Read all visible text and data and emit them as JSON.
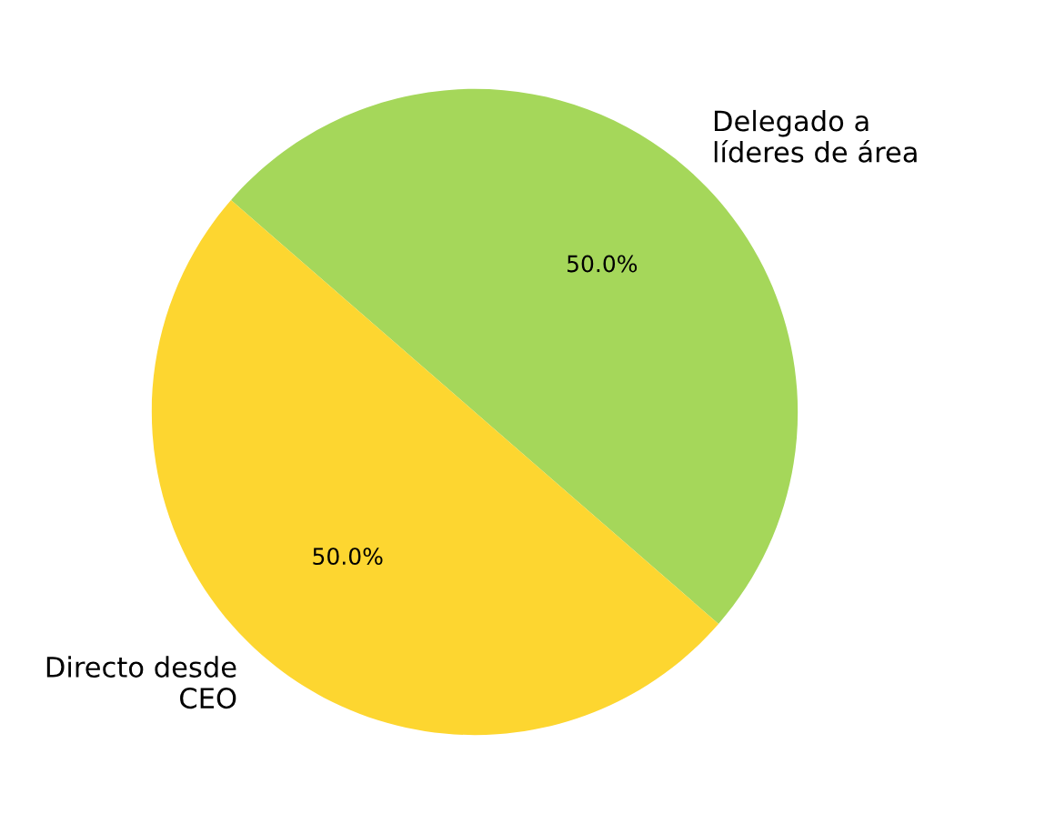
{
  "chart_data": {
    "type": "pie",
    "categories": [
      "Delegado a\nlíderes de área",
      "Directo desde\nCEO"
    ],
    "values": [
      50,
      50
    ],
    "colors": [
      "#a5d75a",
      "#fdd630"
    ],
    "value_labels": [
      "50.0%",
      "50.0%"
    ]
  }
}
